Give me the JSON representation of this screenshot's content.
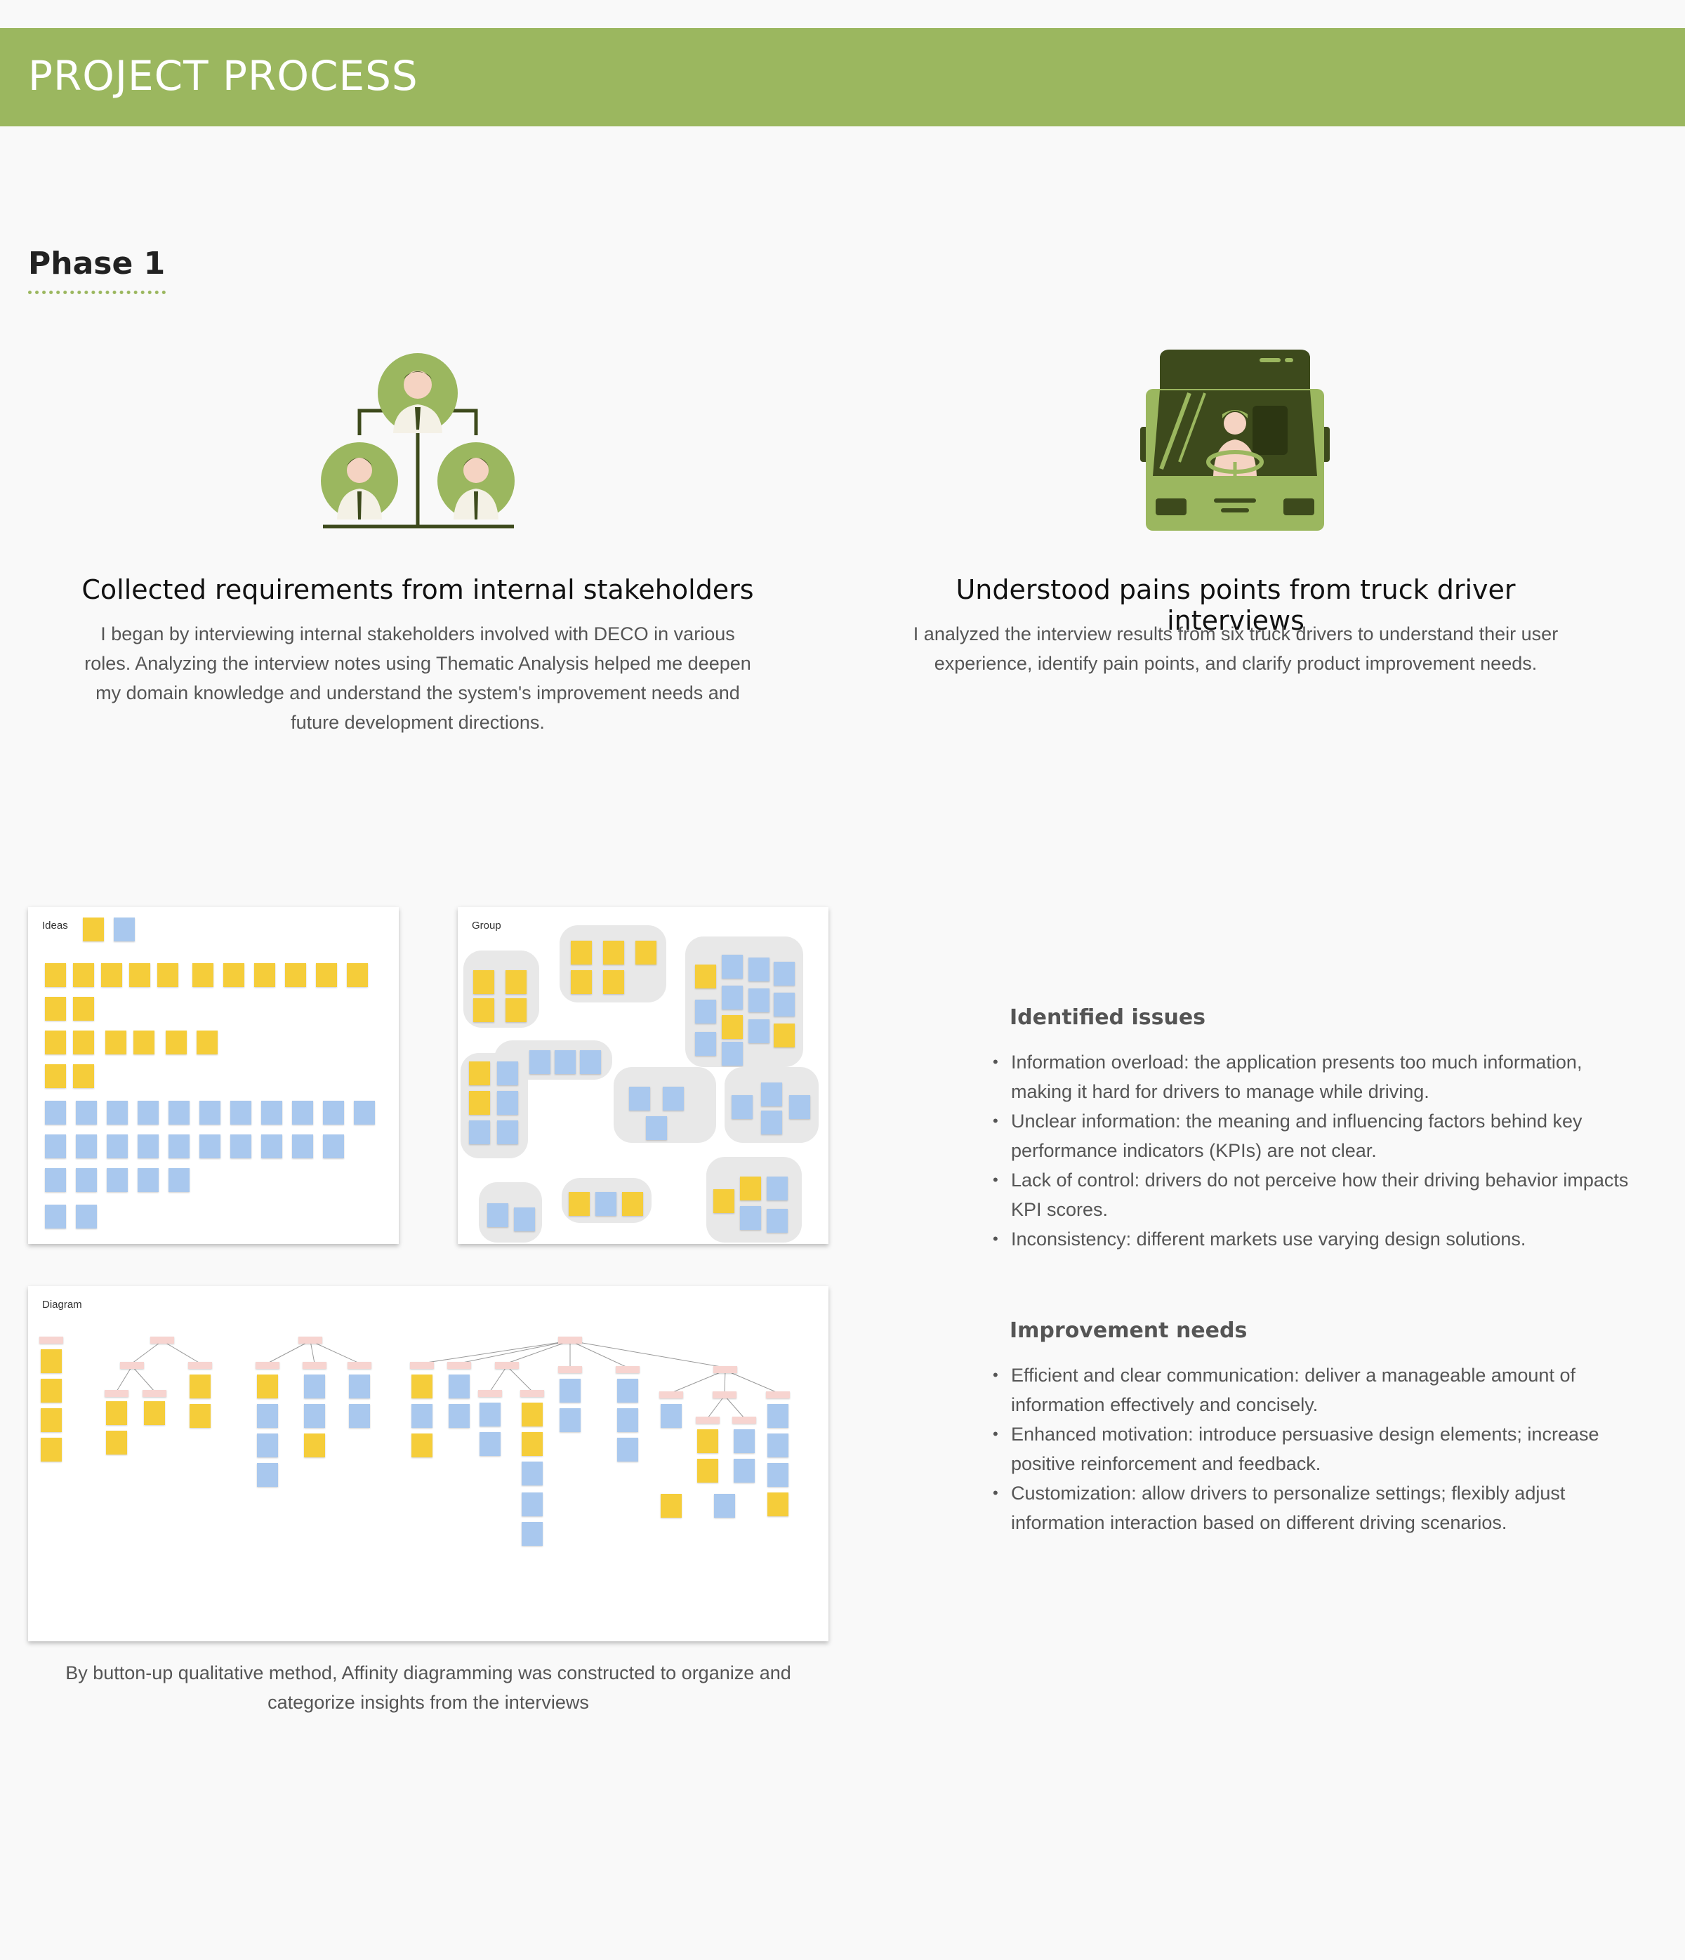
{
  "header": {
    "title": "PROJECT PROCESS"
  },
  "phase": {
    "title": "Phase 1"
  },
  "cards": [
    {
      "icon": "stakeholders-icon",
      "title": "Collected requirements from internal stakeholders",
      "text": "I began by interviewing internal stakeholders involved with DECO in various roles. Analyzing the interview notes using Thematic Analysis helped me deepen my domain knowledge and understand the system's improvement needs and future development directions."
    },
    {
      "icon": "truck-driver-icon",
      "title": "Understood pains points from truck driver interviews",
      "text": "I analyzed the interview results from six truck drivers to understand their user experience, identify pain points, and clarify product improvement needs."
    }
  ],
  "boards": {
    "ideas": "Ideas",
    "group": "Group",
    "diagram": "Diagram"
  },
  "caption": "By button-up qualitative method, Affinity diagramming was constructed to organize and categorize insights from the interviews",
  "issues": {
    "title": "Identified issues",
    "items": [
      "Information overload: the application presents too much information, making it hard for drivers to manage while driving.",
      "Unclear information: the meaning and influencing factors behind key performance indicators (KPIs) are not clear.",
      "Lack of control: drivers do not perceive how their driving behavior impacts KPI scores.",
      "Inconsistency: different markets use varying design solutions."
    ]
  },
  "needs": {
    "title": "Improvement needs",
    "items": [
      "Efficient and clear communication: deliver a manageable amount of information effectively and concisely.",
      "Enhanced motivation: introduce persuasive design elements; increase positive reinforcement and feedback.",
      "Customization: allow drivers to personalize settings; flexibly adjust information interaction based on different driving scenarios."
    ]
  },
  "colors": {
    "accent": "#9bb75f",
    "icon_dark": "#3d4a1c",
    "sticky_yellow": "#f5cd3a",
    "sticky_blue": "#a9c8ee",
    "sticky_pink": "#f7d4d0"
  }
}
